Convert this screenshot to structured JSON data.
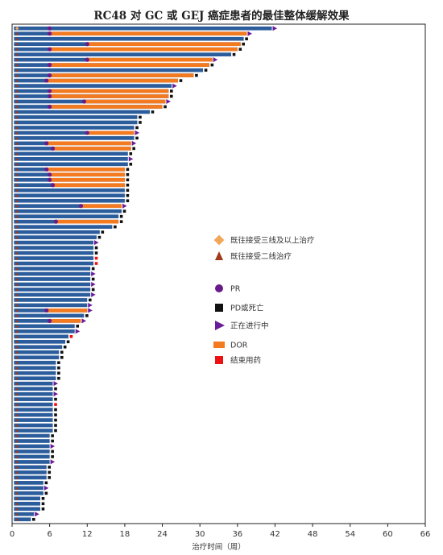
{
  "title": "RC48 对 GC 或 GEJ 癌症患者的最佳整体缓解效果",
  "colors": {
    "bar": "#2b5d9c",
    "dor": "#f47a20",
    "pr": "#6a1b8a",
    "pd": "#111111",
    "ongoing": "#6a1b9a",
    "end": "#ee1111",
    "prior3": "#f2a65a",
    "prior2": "#a03a1a"
  },
  "chart_data": {
    "type": "bar",
    "orientation": "horizontal",
    "title": "RC48 对 GC 或 GEJ 癌症患者的最佳整体缓解效果",
    "xlabel": "治疗时间（周）",
    "ylabel": "",
    "xlim": [
      0,
      66
    ],
    "xticks": [
      "0",
      "6",
      "12",
      "18",
      "24",
      "30",
      "36",
      "42",
      "48",
      "54",
      "60",
      "66"
    ],
    "legend_position": "right",
    "legend": [
      {
        "key": "prior3",
        "label": "既往接受三线及以上治疗",
        "marker": "diamond"
      },
      {
        "key": "prior2",
        "label": "既往接受二线治疗",
        "marker": "triangle-up"
      },
      {
        "key": "pr",
        "label": "PR",
        "marker": "circle"
      },
      {
        "key": "pd",
        "label": "PD或死亡",
        "marker": "square"
      },
      {
        "key": "ongoing",
        "label": "正在进行中",
        "marker": "triangle-right"
      },
      {
        "key": "dor",
        "label": "DOR",
        "marker": "bar"
      },
      {
        "key": "end",
        "label": "结束用药",
        "marker": "square"
      }
    ],
    "patients": [
      {
        "weeks": 41.5,
        "dor_start": null,
        "pr": 6,
        "end": "ongoing",
        "prior": 3
      },
      {
        "weeks": 37.5,
        "dor_start": 6,
        "pr": 6,
        "end": "ongoing",
        "prior": 2
      },
      {
        "weeks": 37.0,
        "dor_start": null,
        "pr": null,
        "end": "pd",
        "prior": 2
      },
      {
        "weeks": 36.5,
        "dor_start": 12,
        "pr": 12,
        "end": "pd",
        "prior": 2
      },
      {
        "weeks": 36.0,
        "dor_start": 6,
        "pr": 6,
        "end": "pd",
        "prior": 2
      },
      {
        "weeks": 35.0,
        "dor_start": null,
        "pr": null,
        "end": "pd",
        "prior": 2
      },
      {
        "weeks": 32.0,
        "dor_start": 12,
        "pr": 12,
        "end": "ongoing",
        "prior": 2
      },
      {
        "weeks": 31.5,
        "dor_start": 6,
        "pr": 6,
        "end": "pd",
        "prior": 2
      },
      {
        "weeks": 30.5,
        "dor_start": null,
        "pr": null,
        "end": "pd",
        "prior": 2
      },
      {
        "weeks": 29.0,
        "dor_start": 6,
        "pr": 6,
        "end": "pd",
        "prior": 2
      },
      {
        "weeks": 26.5,
        "dor_start": 5.5,
        "pr": 5.5,
        "end": "pd",
        "prior": 2
      },
      {
        "weeks": 25.5,
        "dor_start": null,
        "pr": null,
        "end": "ongoing",
        "prior": 2
      },
      {
        "weeks": 25.0,
        "dor_start": 6,
        "pr": 6,
        "end": "pd",
        "prior": 2
      },
      {
        "weeks": 25.0,
        "dor_start": 6,
        "pr": 6,
        "end": "pd",
        "prior": 2
      },
      {
        "weeks": 24.5,
        "dor_start": 11.5,
        "pr": 11.5,
        "end": "ongoing",
        "prior": 2
      },
      {
        "weeks": 24.0,
        "dor_start": 6,
        "pr": 6,
        "end": "pd",
        "prior": 2
      },
      {
        "weeks": 22.0,
        "dor_start": null,
        "pr": null,
        "end": "pd",
        "prior": 2
      },
      {
        "weeks": 20.0,
        "dor_start": null,
        "pr": null,
        "end": "pd",
        "prior": 2
      },
      {
        "weeks": 20.0,
        "dor_start": null,
        "pr": null,
        "end": "pd",
        "prior": 2
      },
      {
        "weeks": 19.5,
        "dor_start": null,
        "pr": null,
        "end": "pd",
        "prior": 2
      },
      {
        "weeks": 19.5,
        "dor_start": 12,
        "pr": 12,
        "end": "ongoing",
        "prior": 2
      },
      {
        "weeks": 19.5,
        "dor_start": null,
        "pr": null,
        "end": "pd",
        "prior": 2
      },
      {
        "weeks": 19.0,
        "dor_start": 5.5,
        "pr": 5.5,
        "end": "ongoing",
        "prior": 2
      },
      {
        "weeks": 19.0,
        "dor_start": 6.5,
        "pr": 6.5,
        "end": "pd",
        "prior": 2
      },
      {
        "weeks": 18.5,
        "dor_start": null,
        "pr": null,
        "end": "pd",
        "prior": 2
      },
      {
        "weeks": 18.5,
        "dor_start": null,
        "pr": null,
        "end": "ongoing",
        "prior": 2
      },
      {
        "weeks": 18.5,
        "dor_start": null,
        "pr": null,
        "end": "pd",
        "prior": 2
      },
      {
        "weeks": 18.0,
        "dor_start": 5.5,
        "pr": 5.5,
        "end": "pd",
        "prior": 2
      },
      {
        "weeks": 18.0,
        "dor_start": 6,
        "pr": 6,
        "end": "pd",
        "prior": 2
      },
      {
        "weeks": 18.0,
        "dor_start": 6,
        "pr": 6,
        "end": "pd",
        "prior": 2
      },
      {
        "weeks": 18.0,
        "dor_start": 6.5,
        "pr": 6.5,
        "end": "pd",
        "prior": 2
      },
      {
        "weeks": 18.0,
        "dor_start": null,
        "pr": null,
        "end": "pd",
        "prior": 2
      },
      {
        "weeks": 18.0,
        "dor_start": null,
        "pr": null,
        "end": "pd",
        "prior": 2
      },
      {
        "weeks": 18.0,
        "dor_start": null,
        "pr": null,
        "end": "pd",
        "prior": 2
      },
      {
        "weeks": 17.5,
        "dor_start": 11,
        "pr": 11,
        "end": "ongoing",
        "prior": 2
      },
      {
        "weeks": 17.5,
        "dor_start": null,
        "pr": null,
        "end": "pd",
        "prior": 2
      },
      {
        "weeks": 17.0,
        "dor_start": null,
        "pr": null,
        "end": "pd",
        "prior": 2
      },
      {
        "weeks": 17.0,
        "dor_start": 7,
        "pr": 7,
        "end": "pd",
        "prior": 2
      },
      {
        "weeks": 16.0,
        "dor_start": null,
        "pr": null,
        "end": "pd",
        "prior": 2
      },
      {
        "weeks": 14.0,
        "dor_start": null,
        "pr": null,
        "end": "pd",
        "prior": 2
      },
      {
        "weeks": 13.5,
        "dor_start": null,
        "pr": null,
        "end": "pd",
        "prior": 2
      },
      {
        "weeks": 13.0,
        "dor_start": null,
        "pr": null,
        "end": "ongoing",
        "prior": 2
      },
      {
        "weeks": 13.0,
        "dor_start": null,
        "pr": null,
        "end": "pd",
        "prior": 2
      },
      {
        "weeks": 13.0,
        "dor_start": null,
        "pr": null,
        "end": "pd",
        "prior": 2
      },
      {
        "weeks": 13.0,
        "dor_start": null,
        "pr": null,
        "end": "end",
        "prior": 2
      },
      {
        "weeks": 13.0,
        "dor_start": null,
        "pr": null,
        "end": "end",
        "prior": 2
      },
      {
        "weeks": 12.5,
        "dor_start": null,
        "pr": null,
        "end": "pd",
        "prior": 2
      },
      {
        "weeks": 12.5,
        "dor_start": null,
        "pr": null,
        "end": "ongoing",
        "prior": 2
      },
      {
        "weeks": 12.5,
        "dor_start": null,
        "pr": null,
        "end": "pd",
        "prior": 2
      },
      {
        "weeks": 12.5,
        "dor_start": null,
        "pr": null,
        "end": "ongoing",
        "prior": 2
      },
      {
        "weeks": 12.5,
        "dor_start": null,
        "pr": null,
        "end": "pd",
        "prior": 2
      },
      {
        "weeks": 12.5,
        "dor_start": null,
        "pr": null,
        "end": "ongoing",
        "prior": 2
      },
      {
        "weeks": 12.0,
        "dor_start": null,
        "pr": null,
        "end": "pd",
        "prior": 2
      },
      {
        "weeks": 12.0,
        "dor_start": null,
        "pr": null,
        "end": "ongoing",
        "prior": 2
      },
      {
        "weeks": 12.0,
        "dor_start": 5.5,
        "pr": 5.5,
        "end": "ongoing",
        "prior": 2
      },
      {
        "weeks": 11.5,
        "dor_start": null,
        "pr": null,
        "end": "pd",
        "prior": 2
      },
      {
        "weeks": 11.0,
        "dor_start": 6,
        "pr": 6,
        "end": "ongoing",
        "prior": 2
      },
      {
        "weeks": 10.0,
        "dor_start": null,
        "pr": null,
        "end": "pd",
        "prior": 2
      },
      {
        "weeks": 10.0,
        "dor_start": null,
        "pr": null,
        "end": "ongoing",
        "prior": 2
      },
      {
        "weeks": 9.0,
        "dor_start": null,
        "pr": null,
        "end": "end",
        "prior": 2
      },
      {
        "weeks": 8.5,
        "dor_start": null,
        "pr": null,
        "end": "pd",
        "prior": 2
      },
      {
        "weeks": 8.0,
        "dor_start": null,
        "pr": null,
        "end": "pd",
        "prior": 2
      },
      {
        "weeks": 7.5,
        "dor_start": null,
        "pr": null,
        "end": "pd",
        "prior": 2
      },
      {
        "weeks": 7.5,
        "dor_start": null,
        "pr": null,
        "end": "pd",
        "prior": 2
      },
      {
        "weeks": 7.0,
        "dor_start": null,
        "pr": null,
        "end": "pd",
        "prior": 2
      },
      {
        "weeks": 7.0,
        "dor_start": null,
        "pr": null,
        "end": "pd",
        "prior": 2
      },
      {
        "weeks": 7.0,
        "dor_start": null,
        "pr": null,
        "end": "pd",
        "prior": 2
      },
      {
        "weeks": 7.0,
        "dor_start": null,
        "pr": null,
        "end": "pd",
        "prior": 2
      },
      {
        "weeks": 6.5,
        "dor_start": null,
        "pr": null,
        "end": "ongoing",
        "prior": 2
      },
      {
        "weeks": 6.5,
        "dor_start": null,
        "pr": null,
        "end": "pd",
        "prior": 2
      },
      {
        "weeks": 6.5,
        "dor_start": null,
        "pr": null,
        "end": "ongoing",
        "prior": 2
      },
      {
        "weeks": 6.5,
        "dor_start": null,
        "pr": null,
        "end": "pd",
        "prior": 2
      },
      {
        "weeks": 6.5,
        "dor_start": null,
        "pr": null,
        "end": "end",
        "prior": 2
      },
      {
        "weeks": 6.5,
        "dor_start": null,
        "pr": null,
        "end": "pd",
        "prior": 2
      },
      {
        "weeks": 6.5,
        "dor_start": null,
        "pr": null,
        "end": "pd",
        "prior": 2
      },
      {
        "weeks": 6.5,
        "dor_start": null,
        "pr": null,
        "end": "pd",
        "prior": 2
      },
      {
        "weeks": 6.5,
        "dor_start": null,
        "pr": null,
        "end": "pd",
        "prior": 2
      },
      {
        "weeks": 6.5,
        "dor_start": null,
        "pr": null,
        "end": "pd",
        "prior": 2
      },
      {
        "weeks": 6.0,
        "dor_start": null,
        "pr": null,
        "end": "pd",
        "prior": 2
      },
      {
        "weeks": 6.0,
        "dor_start": null,
        "pr": null,
        "end": "pd",
        "prior": 2
      },
      {
        "weeks": 6.0,
        "dor_start": null,
        "pr": null,
        "end": "ongoing",
        "prior": 2
      },
      {
        "weeks": 6.0,
        "dor_start": null,
        "pr": null,
        "end": "pd",
        "prior": 2
      },
      {
        "weeks": 6.0,
        "dor_start": null,
        "pr": null,
        "end": "pd",
        "prior": 2
      },
      {
        "weeks": 6.0,
        "dor_start": null,
        "pr": null,
        "end": "ongoing",
        "prior": 2
      },
      {
        "weeks": 5.5,
        "dor_start": null,
        "pr": null,
        "end": "pd",
        "prior": 2
      },
      {
        "weeks": 5.5,
        "dor_start": null,
        "pr": null,
        "end": "pd",
        "prior": 2
      },
      {
        "weeks": 5.5,
        "dor_start": null,
        "pr": null,
        "end": "pd",
        "prior": 2
      },
      {
        "weeks": 5.0,
        "dor_start": null,
        "pr": null,
        "end": "pd",
        "prior": 2
      },
      {
        "weeks": 5.0,
        "dor_start": null,
        "pr": null,
        "end": "ongoing",
        "prior": 2
      },
      {
        "weeks": 5.0,
        "dor_start": null,
        "pr": null,
        "end": "pd",
        "prior": 2
      },
      {
        "weeks": 4.5,
        "dor_start": null,
        "pr": null,
        "end": "pd",
        "prior": 2
      },
      {
        "weeks": 4.5,
        "dor_start": null,
        "pr": null,
        "end": "pd",
        "prior": 2
      },
      {
        "weeks": 4.5,
        "dor_start": null,
        "pr": null,
        "end": "pd",
        "prior": 2
      },
      {
        "weeks": 3.5,
        "dor_start": null,
        "pr": null,
        "end": "ongoing",
        "prior": 2
      },
      {
        "weeks": 3.0,
        "dor_start": null,
        "pr": null,
        "end": "pd",
        "prior": 2
      }
    ]
  }
}
